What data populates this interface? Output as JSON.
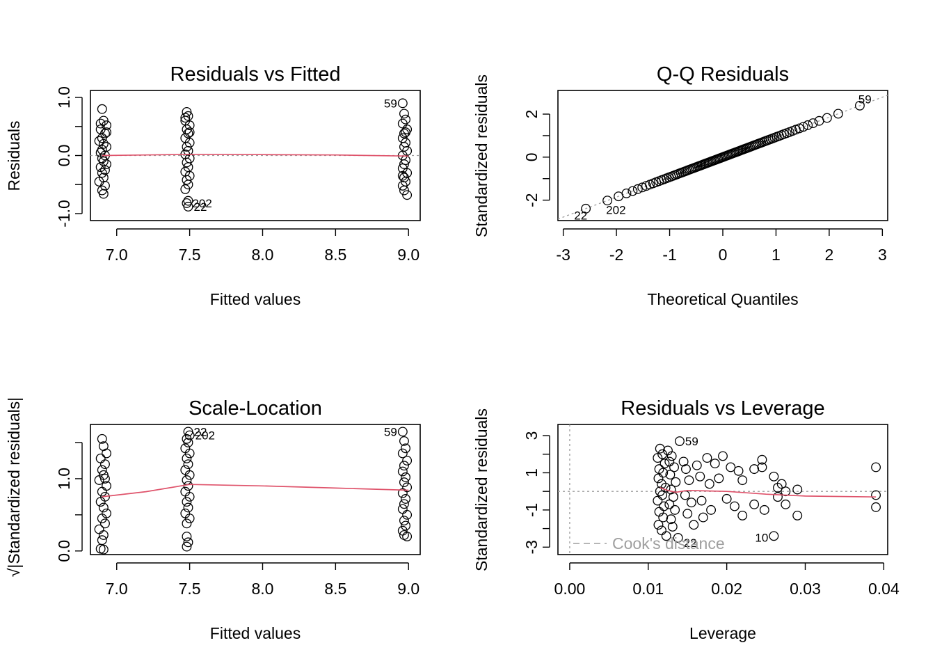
{
  "chart_data": [
    {
      "id": "p1",
      "type": "scatter",
      "title": "Residuals vs Fitted",
      "xlabel": "Fitted values",
      "ylabel": "Residuals",
      "xlim": [
        6.82,
        9.08
      ],
      "ylim": [
        -1.12,
        1.12
      ],
      "xticks": [
        7.0,
        7.5,
        8.0,
        8.5,
        9.0
      ],
      "xtick_labels": [
        "7.0",
        "7.5",
        "8.0",
        "8.5",
        "9.0"
      ],
      "yticks": [
        -1.0,
        -0.5,
        0.0,
        0.5,
        1.0
      ],
      "ytick_labels": [
        "-1.0",
        "",
        "0.0",
        "",
        "1.0"
      ],
      "points": [
        [
          6.9,
          0.8
        ],
        [
          6.91,
          0.6
        ],
        [
          6.93,
          0.52
        ],
        [
          6.89,
          0.45
        ],
        [
          6.92,
          0.38
        ],
        [
          6.9,
          0.3
        ],
        [
          6.88,
          0.25
        ],
        [
          6.91,
          0.2
        ],
        [
          6.93,
          0.15
        ],
        [
          6.9,
          0.1
        ],
        [
          6.89,
          0.05
        ],
        [
          6.92,
          0.0
        ],
        [
          6.9,
          -0.05
        ],
        [
          6.91,
          -0.1
        ],
        [
          6.93,
          -0.15
        ],
        [
          6.89,
          -0.2
        ],
        [
          6.92,
          -0.25
        ],
        [
          6.9,
          -0.3
        ],
        [
          6.91,
          -0.38
        ],
        [
          6.88,
          -0.45
        ],
        [
          6.92,
          -0.52
        ],
        [
          6.9,
          -0.6
        ],
        [
          6.91,
          -0.66
        ],
        [
          6.89,
          0.55
        ],
        [
          6.93,
          0.4
        ],
        [
          7.48,
          0.75
        ],
        [
          7.49,
          0.68
        ],
        [
          7.47,
          0.6
        ],
        [
          7.5,
          0.52
        ],
        [
          7.48,
          0.45
        ],
        [
          7.49,
          0.38
        ],
        [
          7.47,
          0.3
        ],
        [
          7.5,
          0.22
        ],
        [
          7.48,
          0.15
        ],
        [
          7.49,
          0.08
        ],
        [
          7.47,
          0.02
        ],
        [
          7.5,
          -0.05
        ],
        [
          7.48,
          -0.12
        ],
        [
          7.49,
          -0.2
        ],
        [
          7.47,
          -0.28
        ],
        [
          7.5,
          -0.35
        ],
        [
          7.48,
          -0.42
        ],
        [
          7.49,
          -0.5
        ],
        [
          7.47,
          -0.58
        ],
        [
          7.49,
          -0.78
        ],
        [
          7.48,
          -0.82
        ],
        [
          7.49,
          -0.88
        ],
        [
          7.47,
          0.65
        ],
        [
          7.5,
          0.4
        ],
        [
          8.96,
          0.9
        ],
        [
          8.97,
          0.72
        ],
        [
          8.98,
          0.62
        ],
        [
          8.96,
          0.55
        ],
        [
          8.99,
          0.45
        ],
        [
          8.97,
          0.38
        ],
        [
          8.96,
          0.3
        ],
        [
          8.98,
          0.22
        ],
        [
          8.97,
          0.15
        ],
        [
          8.99,
          0.08
        ],
        [
          8.96,
          0.0
        ],
        [
          8.98,
          -0.08
        ],
        [
          8.97,
          -0.15
        ],
        [
          8.96,
          -0.22
        ],
        [
          8.99,
          -0.3
        ],
        [
          8.97,
          -0.38
        ],
        [
          8.98,
          -0.45
        ],
        [
          8.96,
          -0.52
        ],
        [
          8.97,
          -0.6
        ],
        [
          8.99,
          -0.68
        ],
        [
          8.98,
          0.4
        ],
        [
          8.96,
          -0.35
        ]
      ],
      "smooth": [
        [
          6.9,
          0.0
        ],
        [
          7.2,
          0.01
        ],
        [
          7.5,
          0.02
        ],
        [
          8.0,
          0.015
        ],
        [
          8.5,
          0.01
        ],
        [
          9.0,
          -0.01
        ]
      ],
      "refline_y": 0,
      "labels": [
        {
          "text": "59",
          "x": 8.96,
          "y": 0.9,
          "side": "left"
        },
        {
          "text": "202",
          "x": 7.48,
          "y": -0.82,
          "side": "right"
        },
        {
          "text": "22",
          "x": 7.49,
          "y": -0.88,
          "side": "right"
        }
      ]
    },
    {
      "id": "p2",
      "type": "scatter",
      "title": "Q-Q Residuals",
      "xlabel": "Theoretical Quantiles",
      "ylabel": "Standardized residuals",
      "xlim": [
        -3.1,
        3.1
      ],
      "ylim": [
        -2.95,
        3.1
      ],
      "xticks": [
        -3,
        -2,
        -1,
        0,
        1,
        2,
        3
      ],
      "xtick_labels": [
        "-3",
        "-2",
        "-1",
        "0",
        "1",
        "2",
        "3"
      ],
      "yticks": [
        -2,
        -1,
        0,
        1,
        2
      ],
      "ytick_labels": [
        "-2",
        "",
        "0",
        "",
        "2"
      ],
      "qq": {
        "n": 100,
        "slope": 0.93
      },
      "refline": [
        [
          -3.1,
          -2.88
        ],
        [
          3.1,
          2.88
        ]
      ],
      "labels": [
        {
          "text": "59",
          "x": 2.9,
          "y": 2.7,
          "side": "left"
        },
        {
          "text": "22",
          "x": -2.9,
          "y": -2.7,
          "side": "right"
        },
        {
          "text": "202",
          "x": -2.3,
          "y": -2.45,
          "side": "right"
        }
      ]
    },
    {
      "id": "p3",
      "type": "scatter",
      "title": "Scale-Location",
      "xlabel": "Fitted values",
      "ylabel": "√|Standardized residuals|",
      "xlim": [
        6.82,
        9.08
      ],
      "ylim": [
        -0.05,
        1.75
      ],
      "xticks": [
        7.0,
        7.5,
        8.0,
        8.5,
        9.0
      ],
      "xtick_labels": [
        "7.0",
        "7.5",
        "8.0",
        "8.5",
        "9.0"
      ],
      "yticks": [
        0.0,
        0.5,
        1.0,
        1.5
      ],
      "ytick_labels": [
        "0.0",
        "",
        "1.0",
        ""
      ],
      "points": [
        [
          6.9,
          1.55
        ],
        [
          6.91,
          1.45
        ],
        [
          6.93,
          1.35
        ],
        [
          6.89,
          1.28
        ],
        [
          6.92,
          1.2
        ],
        [
          6.9,
          1.12
        ],
        [
          6.91,
          1.05
        ],
        [
          6.88,
          0.98
        ],
        [
          6.93,
          0.9
        ],
        [
          6.9,
          0.82
        ],
        [
          6.92,
          0.75
        ],
        [
          6.89,
          0.68
        ],
        [
          6.91,
          0.6
        ],
        [
          6.93,
          0.52
        ],
        [
          6.9,
          0.45
        ],
        [
          6.92,
          0.38
        ],
        [
          6.88,
          0.3
        ],
        [
          6.91,
          0.22
        ],
        [
          6.9,
          0.15
        ],
        [
          6.89,
          0.03
        ],
        [
          6.91,
          0.02
        ],
        [
          6.92,
          1.0
        ],
        [
          7.48,
          1.55
        ],
        [
          7.49,
          1.5
        ],
        [
          7.47,
          1.42
        ],
        [
          7.5,
          1.35
        ],
        [
          7.48,
          1.28
        ],
        [
          7.49,
          1.2
        ],
        [
          7.47,
          1.12
        ],
        [
          7.5,
          1.05
        ],
        [
          7.48,
          0.98
        ],
        [
          7.49,
          0.9
        ],
        [
          7.47,
          0.82
        ],
        [
          7.5,
          0.75
        ],
        [
          7.48,
          0.68
        ],
        [
          7.49,
          0.6
        ],
        [
          7.47,
          0.52
        ],
        [
          7.5,
          0.45
        ],
        [
          7.48,
          0.38
        ],
        [
          7.48,
          0.2
        ],
        [
          7.49,
          0.12
        ],
        [
          7.48,
          0.06
        ],
        [
          7.49,
          1.65
        ],
        [
          7.5,
          1.6
        ],
        [
          8.96,
          1.65
        ],
        [
          8.97,
          1.52
        ],
        [
          8.98,
          1.42
        ],
        [
          8.96,
          1.35
        ],
        [
          8.99,
          1.25
        ],
        [
          8.97,
          1.18
        ],
        [
          8.96,
          1.1
        ],
        [
          8.98,
          1.02
        ],
        [
          8.97,
          0.95
        ],
        [
          8.99,
          0.88
        ],
        [
          8.96,
          0.8
        ],
        [
          8.98,
          0.72
        ],
        [
          8.97,
          0.65
        ],
        [
          8.96,
          0.58
        ],
        [
          8.99,
          0.5
        ],
        [
          8.97,
          0.42
        ],
        [
          8.98,
          0.35
        ],
        [
          8.96,
          0.28
        ],
        [
          8.97,
          0.22
        ],
        [
          8.99,
          0.2
        ]
      ],
      "smooth": [
        [
          6.9,
          0.75
        ],
        [
          7.2,
          0.82
        ],
        [
          7.5,
          0.92
        ],
        [
          8.0,
          0.9
        ],
        [
          8.5,
          0.87
        ],
        [
          9.0,
          0.84
        ]
      ],
      "labels": [
        {
          "text": "22",
          "x": 7.49,
          "y": 1.65,
          "side": "right"
        },
        {
          "text": "202",
          "x": 7.5,
          "y": 1.6,
          "side": "right"
        },
        {
          "text": "59",
          "x": 8.96,
          "y": 1.65,
          "side": "left"
        }
      ]
    },
    {
      "id": "p4",
      "type": "scatter",
      "title": "Residuals vs Leverage",
      "xlabel": "Leverage",
      "ylabel": "Standardized residuals",
      "xlim": [
        -0.0015,
        0.0405
      ],
      "ylim": [
        -3.4,
        3.6
      ],
      "xticks": [
        0.0,
        0.01,
        0.02,
        0.03,
        0.04
      ],
      "xtick_labels": [
        "0.00",
        "0.01",
        "0.02",
        "0.03",
        "0.04"
      ],
      "yticks": [
        -3,
        -2,
        -1,
        0,
        1,
        2,
        3
      ],
      "ytick_labels": [
        "-3",
        "",
        "-1",
        "",
        "1",
        "",
        "3"
      ],
      "points": [
        [
          0.0115,
          2.3
        ],
        [
          0.0118,
          2.0
        ],
        [
          0.0112,
          1.8
        ],
        [
          0.0121,
          1.5
        ],
        [
          0.0114,
          1.2
        ],
        [
          0.0119,
          1.0
        ],
        [
          0.0113,
          0.7
        ],
        [
          0.0117,
          0.4
        ],
        [
          0.0122,
          0.2
        ],
        [
          0.0115,
          0.0
        ],
        [
          0.0118,
          -0.2
        ],
        [
          0.0112,
          -0.5
        ],
        [
          0.012,
          -0.8
        ],
        [
          0.0114,
          -1.1
        ],
        [
          0.0119,
          -1.4
        ],
        [
          0.0113,
          -1.8
        ],
        [
          0.0117,
          -2.1
        ],
        [
          0.0125,
          2.2
        ],
        [
          0.013,
          1.9
        ],
        [
          0.0127,
          1.6
        ],
        [
          0.0133,
          1.3
        ],
        [
          0.0128,
          0.9
        ],
        [
          0.0135,
          0.5
        ],
        [
          0.0129,
          0.1
        ],
        [
          0.0132,
          -0.3
        ],
        [
          0.0127,
          -0.7
        ],
        [
          0.0134,
          -1.0
        ],
        [
          0.0129,
          -1.5
        ],
        [
          0.0131,
          -1.9
        ],
        [
          0.0123,
          -2.4
        ],
        [
          0.014,
          2.7
        ],
        [
          0.0145,
          1.6
        ],
        [
          0.0148,
          1.2
        ],
        [
          0.0152,
          0.6
        ],
        [
          0.0147,
          -0.2
        ],
        [
          0.0155,
          -0.6
        ],
        [
          0.015,
          -1.2
        ],
        [
          0.0158,
          -1.8
        ],
        [
          0.0138,
          -2.5
        ],
        [
          0.0162,
          1.4
        ],
        [
          0.0166,
          0.8
        ],
        [
          0.0168,
          -0.5
        ],
        [
          0.017,
          -1.4
        ],
        [
          0.0175,
          1.8
        ],
        [
          0.0178,
          0.4
        ],
        [
          0.018,
          -1.0
        ],
        [
          0.0185,
          1.5
        ],
        [
          0.019,
          0.7
        ],
        [
          0.0195,
          1.9
        ],
        [
          0.02,
          -0.4
        ],
        [
          0.0205,
          1.3
        ],
        [
          0.021,
          -0.8
        ],
        [
          0.0215,
          1.1
        ],
        [
          0.022,
          0.6
        ],
        [
          0.022,
          -1.3
        ],
        [
          0.0235,
          1.2
        ],
        [
          0.0235,
          -0.7
        ],
        [
          0.0245,
          1.7
        ],
        [
          0.0245,
          1.3
        ],
        [
          0.0248,
          -1.0
        ],
        [
          0.026,
          0.8
        ],
        [
          0.026,
          -2.4
        ],
        [
          0.0265,
          0.2
        ],
        [
          0.0265,
          -0.3
        ],
        [
          0.027,
          0.4
        ],
        [
          0.0275,
          -0.7
        ],
        [
          0.0275,
          0.0
        ],
        [
          0.029,
          0.1
        ],
        [
          0.029,
          -1.3
        ],
        [
          0.039,
          1.3
        ],
        [
          0.039,
          -0.2
        ],
        [
          0.039,
          -0.85
        ]
      ],
      "smooth": [
        [
          0.0115,
          0.2
        ],
        [
          0.0125,
          0.05
        ],
        [
          0.0135,
          -0.05
        ],
        [
          0.015,
          0.05
        ],
        [
          0.02,
          0.0
        ],
        [
          0.025,
          -0.15
        ],
        [
          0.03,
          -0.25
        ],
        [
          0.039,
          -0.3
        ]
      ],
      "refline_y": 0,
      "refline_x": 0,
      "legend": {
        "label": "Cook's distance",
        "placement": "bottom-left"
      },
      "labels": [
        {
          "text": "59",
          "x": 0.014,
          "y": 2.7,
          "side": "right"
        },
        {
          "text": "22",
          "x": 0.0138,
          "y": -2.5,
          "side": "right",
          "dy": 1.2
        },
        {
          "text": "10",
          "x": 0.026,
          "y": -2.4,
          "side": "left",
          "dy": 0.4
        }
      ]
    }
  ]
}
